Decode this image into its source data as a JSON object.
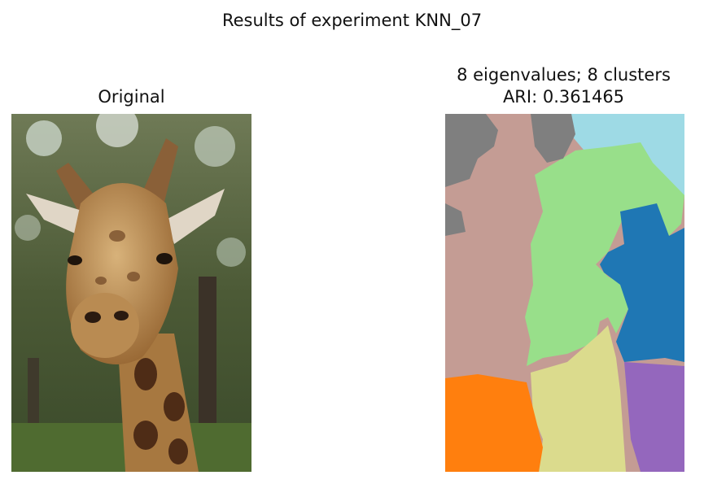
{
  "figure": {
    "suptitle": "Results of experiment KNN_07",
    "left_title": "Original",
    "right_title_line1": "8 eigenvalues; 8 clusters",
    "right_title_line2": "ARI: 0.361465"
  },
  "colors": {
    "cluster_gray": "#7f7f7f",
    "cluster_brown": "#c49c94",
    "cluster_green": "#98df8a",
    "cluster_cyan": "#9edae5",
    "cluster_blue": "#1f77b4",
    "cluster_orange": "#ff7f0e",
    "cluster_olive": "#dbdb8d",
    "cluster_purple": "#9467bd"
  }
}
